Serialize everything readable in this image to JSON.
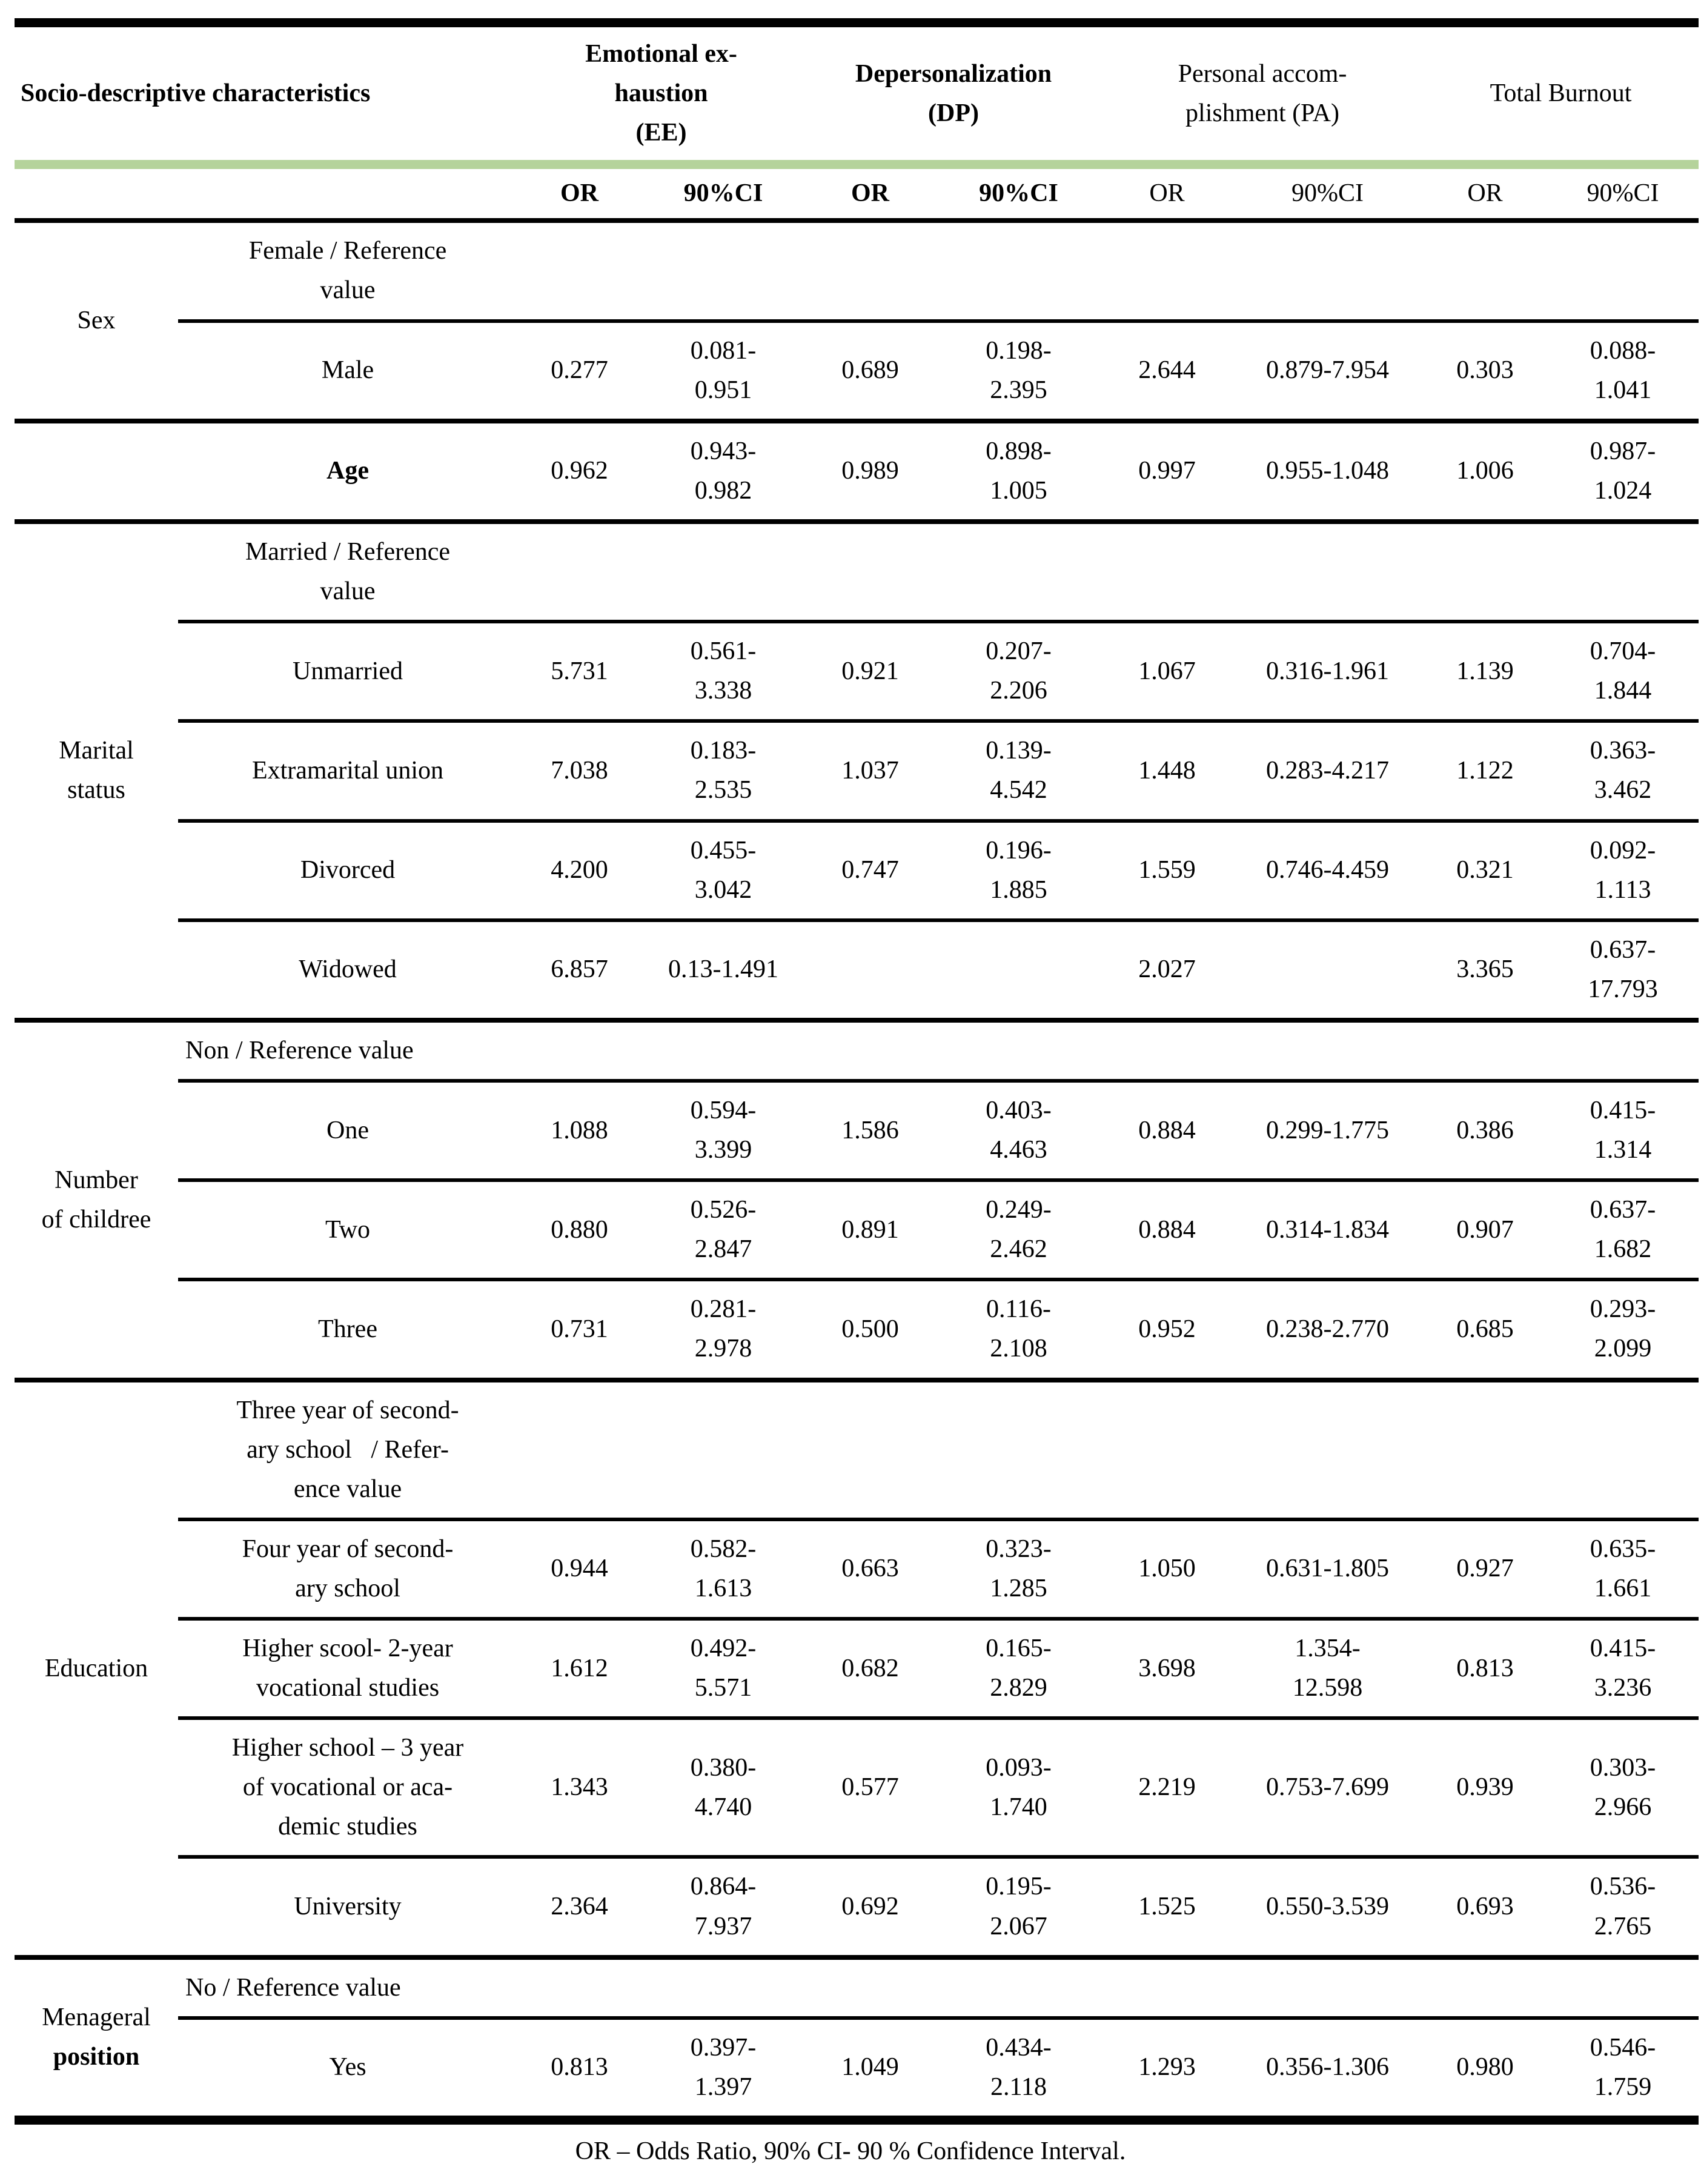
{
  "colors": {
    "header_band": "#b5d39b",
    "rule": "#000000",
    "text": "#000000"
  },
  "header": {
    "title": "Socio-descriptive characteristics",
    "groups": [
      {
        "label": "Emotional ex-\nhaustion\n(EE)",
        "bold": true
      },
      {
        "label": "Depersonalization\n(DP)",
        "bold": true
      },
      {
        "label": "Personal accom-\nplishment (PA)",
        "bold": false
      },
      {
        "label": "Total Burnout",
        "bold": false
      }
    ],
    "or_label": "OR",
    "ci_label": "90%CI"
  },
  "sections": [
    {
      "group": [
        {
          "text": "Sex",
          "bold": false
        }
      ],
      "rows": [
        {
          "category": "Female / Reference\nvalue",
          "bold": false,
          "rule": "partial",
          "cells": [
            "",
            "",
            "",
            "",
            "",
            "",
            "",
            ""
          ]
        },
        {
          "category": "Male",
          "bold": false,
          "rule": "full",
          "cells": [
            "0.277",
            "0.081-\n0.951",
            "0.689",
            "0.198-\n2.395",
            "2.644",
            "0.879-7.954",
            "0.303",
            "0.088-\n1.041"
          ]
        }
      ]
    },
    {
      "group": [],
      "rows": [
        {
          "category": "Age",
          "bold": true,
          "rule": "full",
          "cells": [
            "0.962",
            "0.943-\n0.982",
            "0.989",
            "0.898-\n1.005",
            "0.997",
            "0.955-1.048",
            "1.006",
            "0.987-\n1.024"
          ]
        }
      ]
    },
    {
      "group": [
        {
          "text": "Marital",
          "bold": false
        },
        {
          "text": "status",
          "bold": false
        }
      ],
      "rows": [
        {
          "category": "Married / Reference\nvalue",
          "bold": false,
          "rule": "partial",
          "cells": [
            "",
            "",
            "",
            "",
            "",
            "",
            "",
            ""
          ]
        },
        {
          "category": "Unmarried",
          "bold": false,
          "rule": "partial",
          "cells": [
            "5.731",
            "0.561-\n3.338",
            "0.921",
            "0.207-\n2.206",
            "1.067",
            "0.316-1.961",
            "1.139",
            "0.704-\n1.844"
          ]
        },
        {
          "category": "Extramarital union",
          "bold": false,
          "rule": "partial",
          "cells": [
            "7.038",
            "0.183-\n2.535",
            "1.037",
            "0.139-\n4.542",
            "1.448",
            "0.283-4.217",
            "1.122",
            "0.363-\n3.462"
          ]
        },
        {
          "category": "Divorced",
          "bold": false,
          "rule": "partial",
          "cells": [
            "4.200",
            "0.455-\n3.042",
            "0.747",
            "0.196-\n1.885",
            "1.559",
            "0.746-4.459",
            "0.321",
            "0.092-\n1.113"
          ]
        },
        {
          "category": "Widowed",
          "bold": false,
          "rule": "full",
          "cells": [
            "6.857",
            "0.13-1.491",
            "",
            "",
            "2.027",
            "",
            "3.365",
            "0.637-\n17.793"
          ]
        }
      ]
    },
    {
      "group": [
        {
          "text": "Number",
          "bold": false
        },
        {
          "text": "of childree",
          "bold": false
        }
      ],
      "rows": [
        {
          "category": "Non / Reference value",
          "bold": false,
          "align": "left",
          "rule": "partial",
          "cells": [
            "",
            "",
            "",
            "",
            "",
            "",
            "",
            ""
          ]
        },
        {
          "category": "One",
          "bold": false,
          "rule": "partial",
          "cells": [
            "1.088",
            "0.594-\n3.399",
            "1.586",
            "0.403-\n4.463",
            "0.884",
            "0.299-1.775",
            "0.386",
            "0.415-\n1.314"
          ]
        },
        {
          "category": "Two",
          "bold": false,
          "rule": "partial",
          "cells": [
            "0.880",
            "0.526-\n2.847",
            "0.891",
            "0.249-\n2.462",
            "0.884",
            "0.314-1.834",
            "0.907",
            "0.637-\n1.682"
          ]
        },
        {
          "category": "Three",
          "bold": false,
          "rule": "full",
          "cells": [
            "0.731",
            "0.281-\n2.978",
            "0.500",
            "0.116-\n2.108",
            "0.952",
            "0.238-2.770",
            "0.685",
            "0.293-\n2.099"
          ]
        }
      ]
    },
    {
      "group": [
        {
          "text": "Education",
          "bold": false
        }
      ],
      "rows": [
        {
          "category": "Three year of second-\nary school   / Refer-\nence value",
          "bold": false,
          "rule": "partial",
          "cells": [
            "",
            "",
            "",
            "",
            "",
            "",
            "",
            ""
          ]
        },
        {
          "category": "Four year of second-\nary school",
          "bold": false,
          "rule": "partial",
          "cells": [
            "0.944",
            "0.582-\n1.613",
            "0.663",
            "0.323-\n1.285",
            "1.050",
            "0.631-1.805",
            "0.927",
            "0.635-\n1.661"
          ]
        },
        {
          "category": "Higher scool- 2-year\nvocational studies",
          "bold": false,
          "rule": "partial",
          "cells": [
            "1.612",
            "0.492-\n5.571",
            "0.682",
            "0.165-\n2.829",
            "3.698",
            "1.354-\n12.598",
            "0.813",
            "0.415-\n3.236"
          ]
        },
        {
          "category": "Higher school – 3 year\nof vocational or aca-\ndemic studies",
          "bold": false,
          "rule": "partial",
          "cells": [
            "1.343",
            "0.380-\n4.740",
            "0.577",
            "0.093-\n1.740",
            "2.219",
            "0.753-7.699",
            "0.939",
            "0.303-\n2.966"
          ]
        },
        {
          "category": "University",
          "bold": false,
          "rule": "full",
          "cells": [
            "2.364",
            "0.864-\n7.937",
            "0.692",
            "0.195-\n2.067",
            "1.525",
            "0.550-3.539",
            "0.693",
            "0.536-\n2.765"
          ]
        }
      ]
    },
    {
      "group": [
        {
          "text": "Menageral",
          "bold": false
        },
        {
          "text": "position",
          "bold": true
        }
      ],
      "rows": [
        {
          "category": "No / Reference value",
          "bold": false,
          "align": "left",
          "rule": "partial",
          "cells": [
            "",
            "",
            "",
            "",
            "",
            "",
            "",
            ""
          ]
        },
        {
          "category": "Yes",
          "bold": false,
          "rule": "full",
          "cells": [
            "0.813",
            "0.397-\n1.397",
            "1.049",
            "0.434-\n2.118",
            "1.293",
            "0.356-1.306",
            "0.980",
            "0.546-\n1.759"
          ]
        }
      ]
    }
  ],
  "footnote": "OR – Odds Ratio, 90% CI- 90 % Confidence Interval."
}
